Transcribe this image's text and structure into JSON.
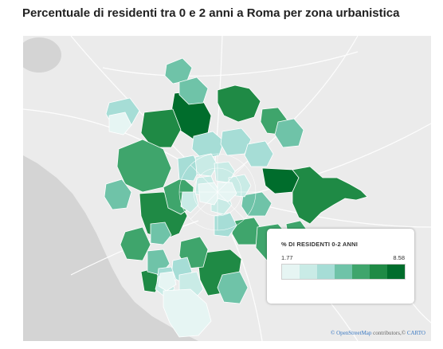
{
  "title": "Percentuale di residenti tra 0 e 2 anni a Roma per zona urbanistica",
  "legend": {
    "title": "% DI RESIDENTI 0-2 ANNI",
    "min": "1.77",
    "max": "8.58",
    "colors": [
      "#e6f5f3",
      "#c9ebe6",
      "#a6ddd6",
      "#6fc3a8",
      "#3fa56c",
      "#1f8a45",
      "#006d2c"
    ]
  },
  "attribution": {
    "osm_label": "© OpenStreetMap",
    "contributors_label": "contributors,©",
    "carto_label": "CARTO"
  },
  "colors": {
    "sea": "#d4d4d4",
    "land": "#ebebeb",
    "roads": "#ffffff",
    "zone_border": "#ffffff"
  }
}
